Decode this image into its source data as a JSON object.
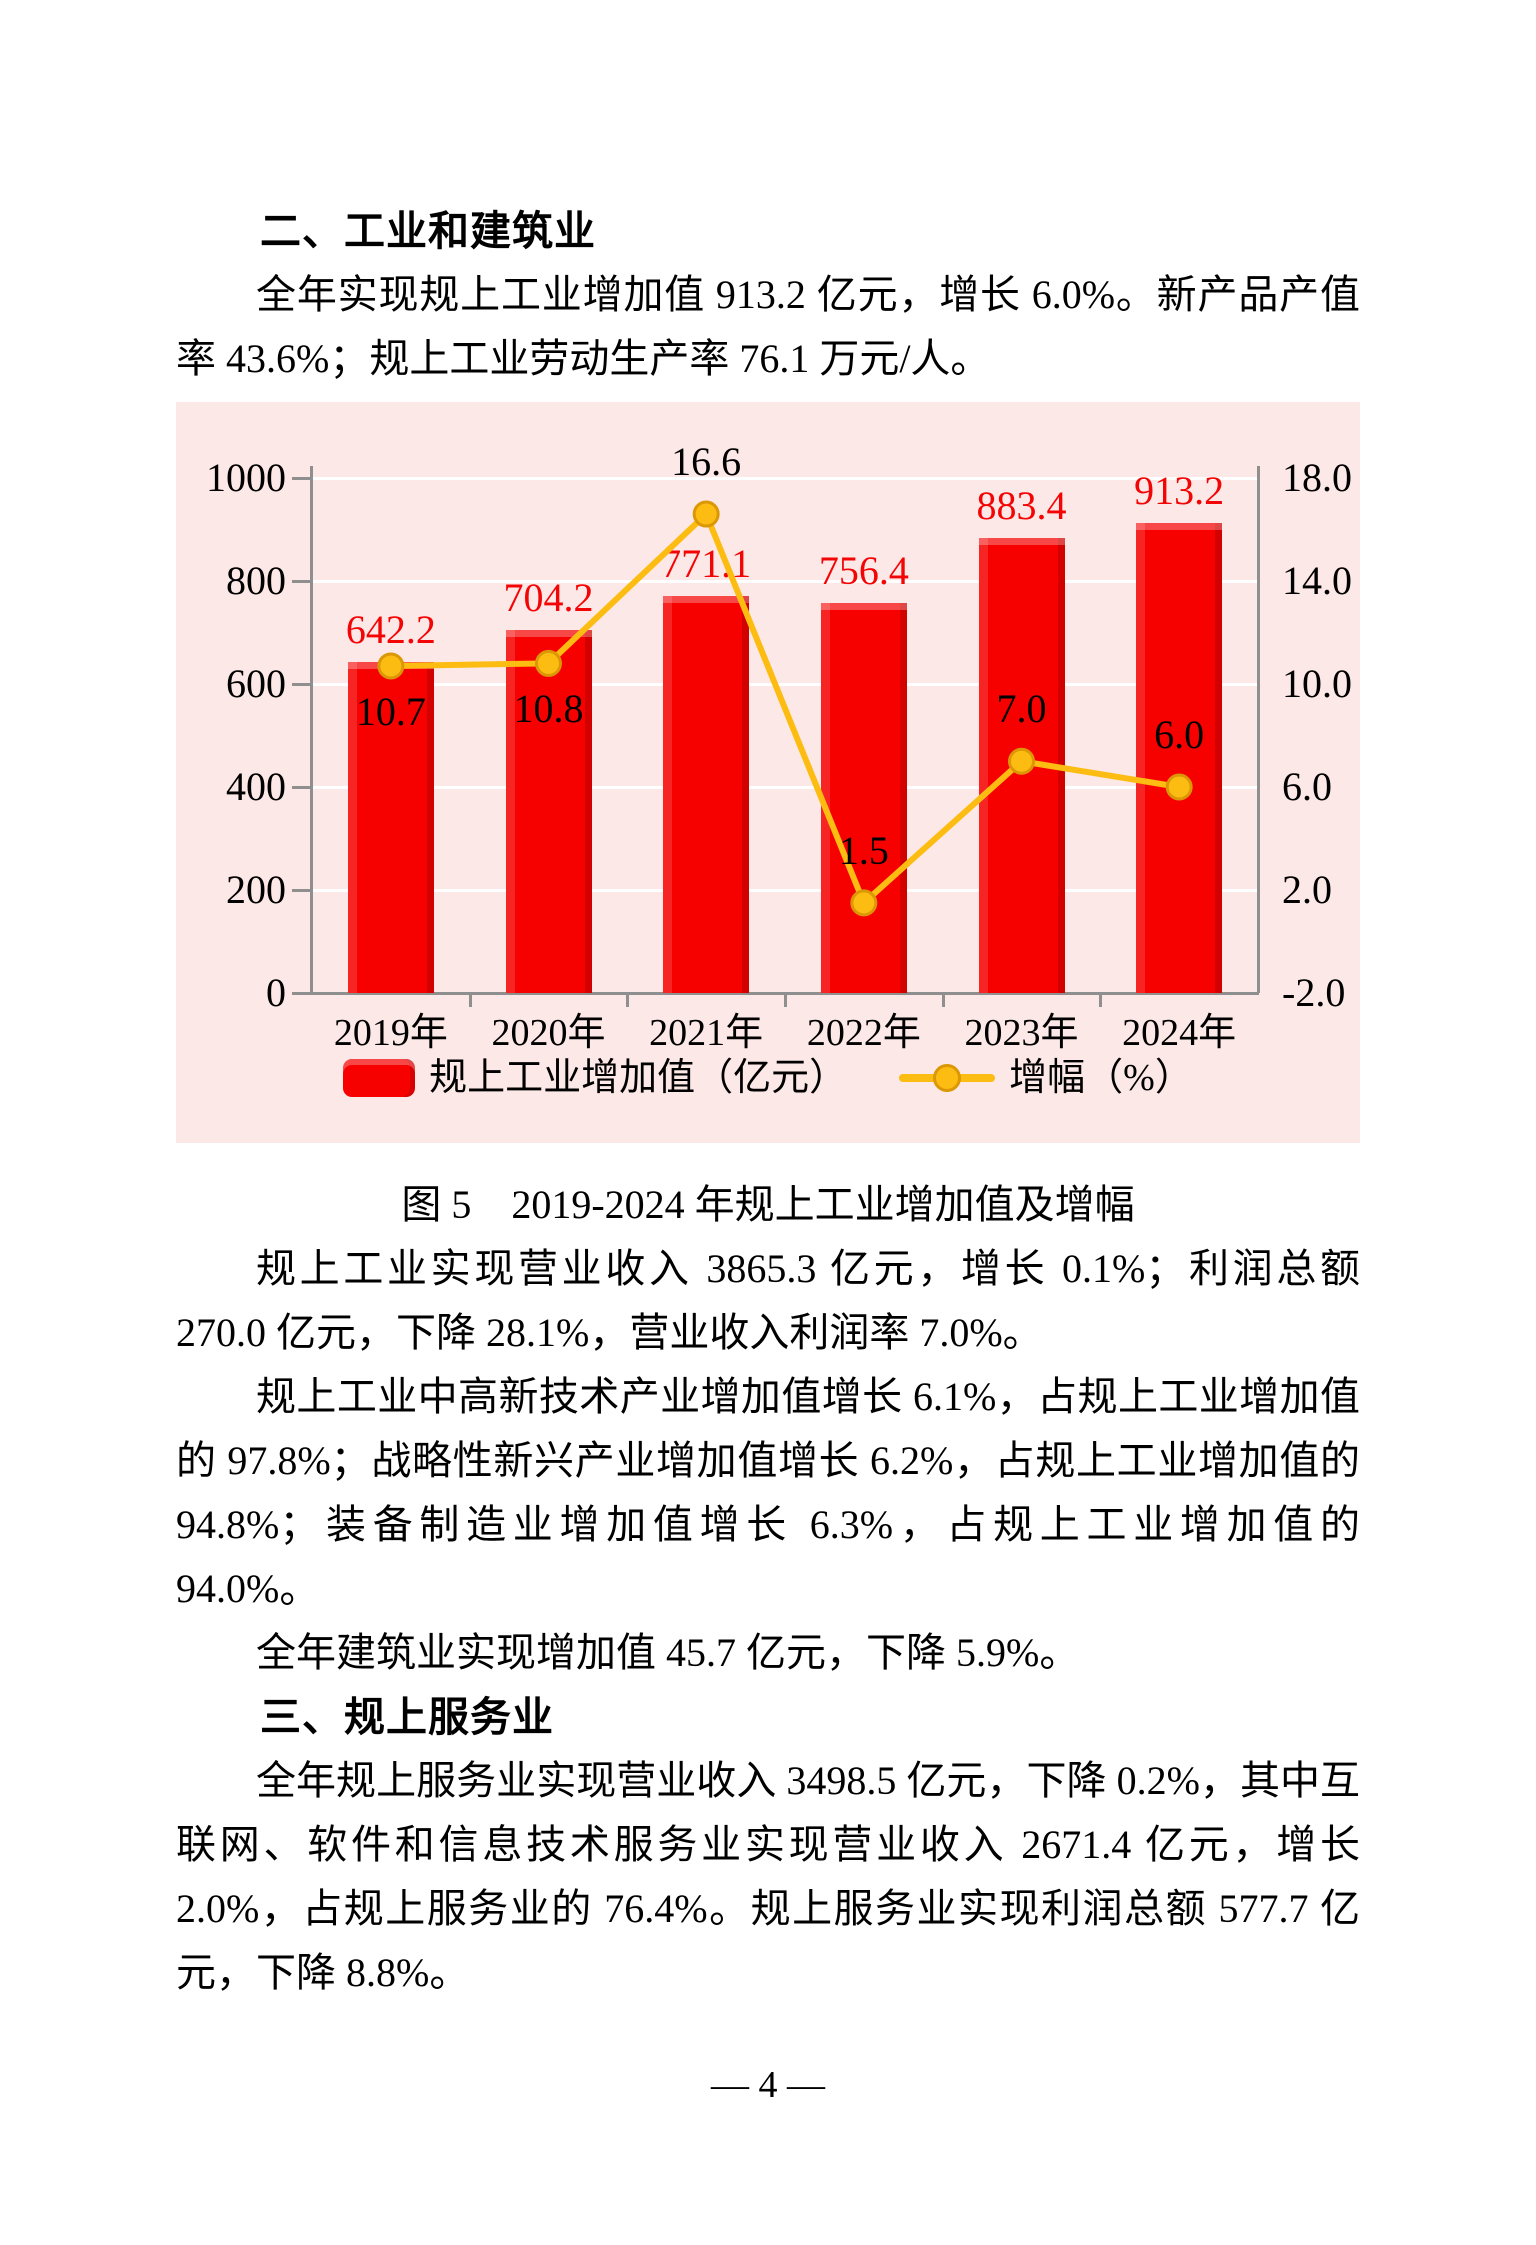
{
  "page": {
    "heading_industry": "二、工业和建筑业",
    "para_industry": "全年实现规上工业增加值 913.2 亿元，增长 6.0%。新产品产值率 43.6%；规上工业劳动生产率 76.1 万元/人。",
    "figure_caption": "图 5　2019-2024 年规上工业增加值及增幅",
    "para_revenue": "规上工业实现营业收入 3865.3 亿元，增长 0.1%；利润总额 270.0 亿元，下降 28.1%，营业收入利润率 7.0%。",
    "para_hightech": "规上工业中高新技术产业增加值增长 6.1%，占规上工业增加值的 97.8%；战略性新兴产业增加值增长 6.2%，占规上工业增加值的 94.8%；装备制造业增加值增长 6.3%，占规上工业增加值的 94.0%。",
    "para_construction": "全年建筑业实现增加值 45.7 亿元，下降 5.9%。",
    "heading_services": "三、规上服务业",
    "para_services": "全年规上服务业实现营业收入 3498.5 亿元，下降 0.2%，其中互联网、软件和信息技术服务业实现营业收入 2671.4 亿元，增长 2.0%，占规上服务业的 76.4%。规上服务业实现利润总额 577.7 亿元，下降 8.8%。",
    "page_number": "— 4 —"
  },
  "chart_data": {
    "type": "bar",
    "subtype": "combo bar+line, dual axis",
    "title": "图 5　2019-2024 年规上工业增加值及增幅",
    "categories": [
      "2019年",
      "2020年",
      "2021年",
      "2022年",
      "2023年",
      "2024年"
    ],
    "series": [
      {
        "name": "规上工业增加值（亿元）",
        "type": "bar",
        "axis": "left",
        "color": "#f60000",
        "values": [
          642.2,
          704.2,
          771.1,
          756.4,
          883.4,
          913.2
        ]
      },
      {
        "name": "增幅（%）",
        "type": "line",
        "axis": "right",
        "color": "#fdbc11",
        "marker_border": "#dc9705",
        "values": [
          10.7,
          10.8,
          16.6,
          1.5,
          7.0,
          6.0
        ],
        "label_pos": [
          "below",
          "below",
          "above",
          "above",
          "above",
          "above"
        ]
      }
    ],
    "left_axis": {
      "min": 0,
      "max": 1000,
      "tick_labels": [
        "1000",
        "800",
        "600",
        "400",
        "200",
        "0"
      ]
    },
    "right_axis": {
      "min": -2.0,
      "max": 18.0,
      "tick_labels": [
        "18.0",
        "14.0",
        "10.0",
        "6.0",
        "2.0",
        "-2.0"
      ]
    },
    "grid": true,
    "gridline_color": "#ffffff",
    "background": "#fce8e6",
    "legend_position": "bottom"
  }
}
